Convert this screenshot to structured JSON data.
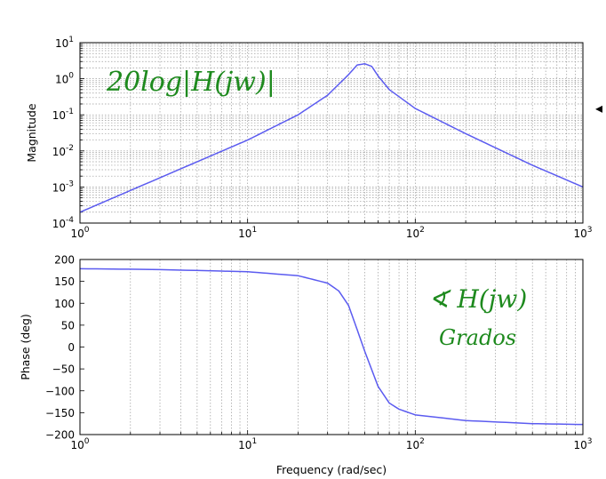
{
  "chart_data": [
    {
      "type": "line",
      "panel": "magnitude",
      "xscale": "log",
      "yscale": "log",
      "xlim": [
        1,
        1000
      ],
      "ylim": [
        0.0001,
        10
      ],
      "xlabel": "",
      "ylabel": "Magnitude",
      "grid": true,
      "x_ticks": [
        {
          "value": 1,
          "base": "10",
          "exp": "0"
        },
        {
          "value": 10,
          "base": "10",
          "exp": "1"
        },
        {
          "value": 100,
          "base": "10",
          "exp": "2"
        },
        {
          "value": 1000,
          "base": "10",
          "exp": "3"
        }
      ],
      "y_ticks": [
        {
          "value": 0.0001,
          "base": "10",
          "exp": "-4"
        },
        {
          "value": 0.001,
          "base": "10",
          "exp": "-3"
        },
        {
          "value": 0.01,
          "base": "10",
          "exp": "-2"
        },
        {
          "value": 0.1,
          "base": "10",
          "exp": "-1"
        },
        {
          "value": 1,
          "base": "10",
          "exp": "0"
        },
        {
          "value": 10,
          "base": "10",
          "exp": "1"
        }
      ],
      "series": [
        {
          "color": "#5b5bf0",
          "x": [
            1,
            2,
            5,
            10,
            20,
            30,
            40,
            45,
            50,
            55,
            60,
            70,
            100,
            200,
            500,
            1000
          ],
          "y": [
            0.0002,
            0.0008,
            0.005,
            0.02,
            0.1,
            0.35,
            1.3,
            2.4,
            2.6,
            2.2,
            1.2,
            0.5,
            0.15,
            0.03,
            0.004,
            0.001
          ]
        }
      ],
      "annotations": [
        {
          "text": "20log|H(jw)|"
        }
      ]
    },
    {
      "type": "line",
      "panel": "phase",
      "xscale": "log",
      "yscale": "linear",
      "xlim": [
        1,
        1000
      ],
      "ylim": [
        -200,
        200
      ],
      "xlabel": "Frequency (rad/sec)",
      "ylabel": "Phase (deg)",
      "grid": "x-only",
      "x_ticks": [
        {
          "value": 1,
          "base": "10",
          "exp": "0"
        },
        {
          "value": 10,
          "base": "10",
          "exp": "1"
        },
        {
          "value": 100,
          "base": "10",
          "exp": "2"
        },
        {
          "value": 1000,
          "base": "10",
          "exp": "3"
        }
      ],
      "y_ticks": [
        {
          "value": 200,
          "label": "200"
        },
        {
          "value": 150,
          "label": "150"
        },
        {
          "value": 100,
          "label": "100"
        },
        {
          "value": 50,
          "label": "50"
        },
        {
          "value": 0,
          "label": "0"
        },
        {
          "value": -50,
          "label": "−50"
        },
        {
          "value": -100,
          "label": "−100"
        },
        {
          "value": -150,
          "label": "−150"
        },
        {
          "value": -200,
          "label": "−200"
        }
      ],
      "series": [
        {
          "color": "#5b5bf0",
          "x": [
            1,
            3,
            10,
            20,
            30,
            35,
            40,
            45,
            50,
            60,
            70,
            80,
            100,
            200,
            500,
            1000
          ],
          "y": [
            179,
            177,
            172,
            163,
            146,
            128,
            95,
            40,
            -10,
            -90,
            -128,
            -142,
            -155,
            -168,
            -175,
            -177
          ]
        }
      ],
      "annotations": [
        {
          "text": "∢ H(jw)"
        },
        {
          "text": "Grados"
        }
      ]
    }
  ],
  "marker": {
    "glyph": "◂"
  }
}
